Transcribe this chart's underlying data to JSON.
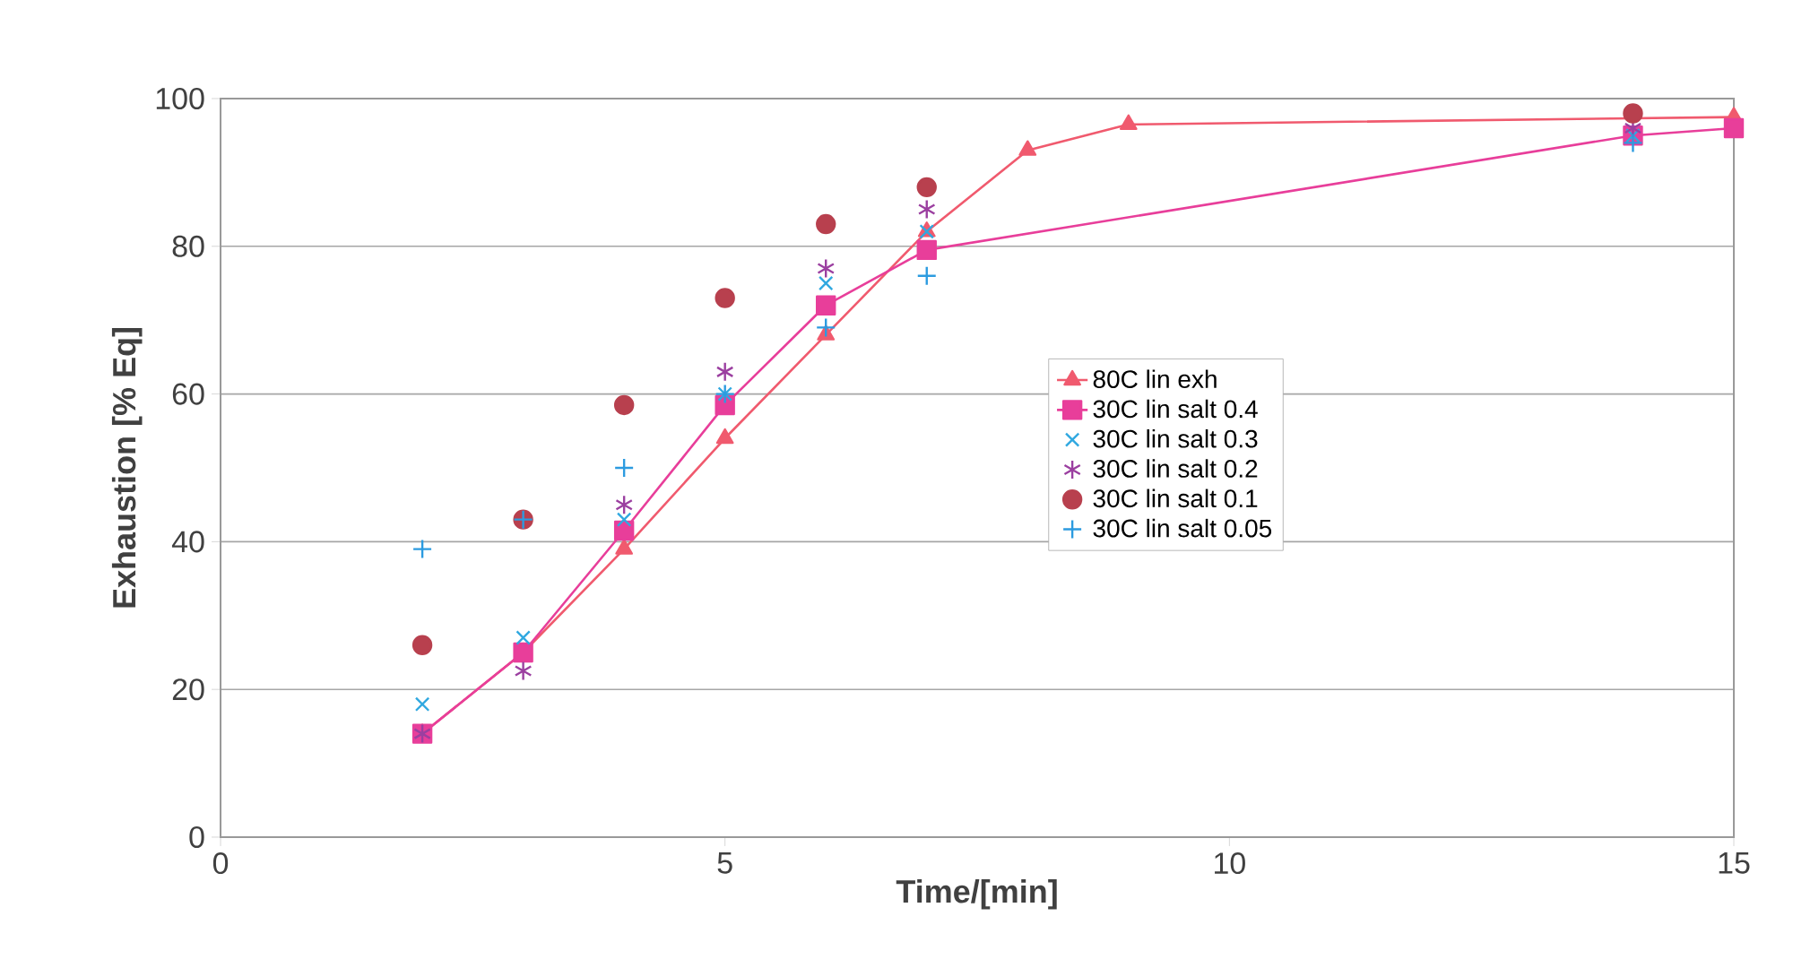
{
  "chart_data": {
    "type": "line",
    "xlabel": "Time/[min]",
    "ylabel": "Exhaustion [% Eq]",
    "xlim": [
      0,
      15
    ],
    "xticks": [
      0,
      5,
      10,
      15
    ],
    "ylim": [
      0,
      100
    ],
    "yticks": [
      0,
      20,
      40,
      60,
      80,
      100
    ],
    "grid": "y",
    "legend": "right",
    "series": [
      {
        "name": "80C lin exh",
        "type": "line",
        "marker": "triangle",
        "color": "#f05a6e",
        "x": [
          2,
          3,
          4,
          5,
          6,
          7,
          8,
          9,
          15
        ],
        "values": [
          14,
          25,
          39,
          54,
          68,
          82,
          93,
          96.5,
          97.5
        ]
      },
      {
        "name": "30C lin salt 0.4",
        "type": "line",
        "marker": "square",
        "color": "#e83e9a",
        "x": [
          2,
          3,
          4,
          5,
          6,
          7,
          14,
          15
        ],
        "values": [
          14,
          25,
          41.5,
          58.5,
          72,
          79.5,
          95,
          96
        ]
      },
      {
        "name": "30C lin salt 0.3",
        "type": "scatter",
        "marker": "cross",
        "color": "#30a8e0",
        "x": [
          2,
          3,
          4,
          5,
          6,
          7,
          14
        ],
        "values": [
          18,
          27,
          43,
          60,
          75,
          82,
          95
        ]
      },
      {
        "name": "30C lin salt 0.2",
        "type": "scatter",
        "color": "#9b3fa0",
        "x": [
          2,
          3,
          4,
          5,
          6,
          7,
          14
        ],
        "values": [
          14,
          22.5,
          45,
          63,
          77,
          85,
          96
        ]
      },
      {
        "name": "30C lin salt 0.1",
        "type": "scatter",
        "marker": "circle",
        "color": "#b8404e",
        "x": [
          2,
          3,
          4,
          5,
          6,
          7,
          14
        ],
        "values": [
          26,
          43,
          58.5,
          73,
          83,
          88,
          98
        ]
      },
      {
        "name": "30C lin salt 0.05",
        "type": "scatter",
        "marker": "plus",
        "color": "#2c9be0",
        "x": [
          2,
          3,
          4,
          5,
          6,
          7,
          14
        ],
        "values": [
          39,
          43,
          50,
          60,
          69,
          76,
          94
        ]
      }
    ]
  }
}
